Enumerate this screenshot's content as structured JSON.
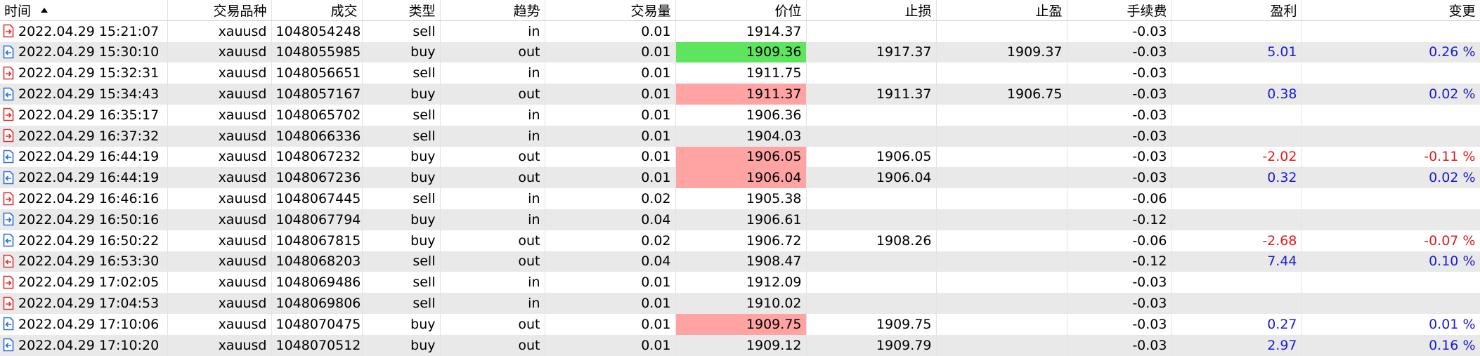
{
  "columns": [
    "时间",
    "交易品种",
    "成交",
    "类型",
    "趋势",
    "交易量",
    "价位",
    "止损",
    "止盈",
    "手续费",
    "盈利",
    "变更"
  ],
  "colors": {
    "pos": "#1a1adb",
    "neg": "#e31b1b",
    "highlight_green": "#5ee55e",
    "highlight_red": "#ffa3a3",
    "row_alt": "#e9e9e9"
  },
  "rows": [
    {
      "icon": "sell-in-icon",
      "time": "2022.04.29 15:21:07",
      "symbol": "xauusd",
      "deal": "1048054248",
      "type": "sell",
      "direction": "in",
      "volume": "0.01",
      "price": "1914.37",
      "price_hl": "",
      "sl": "",
      "tp": "",
      "commission": "-0.03",
      "profit": "",
      "profit_sign": "",
      "change": ""
    },
    {
      "icon": "buy-out-icon",
      "time": "2022.04.29 15:30:10",
      "symbol": "xauusd",
      "deal": "1048055985",
      "type": "buy",
      "direction": "out",
      "volume": "0.01",
      "price": "1909.36",
      "price_hl": "green",
      "sl": "1917.37",
      "tp": "1909.37",
      "commission": "-0.03",
      "profit": "5.01",
      "profit_sign": "pos",
      "change": "0.26 %"
    },
    {
      "icon": "sell-in-icon",
      "time": "2022.04.29 15:32:31",
      "symbol": "xauusd",
      "deal": "1048056651",
      "type": "sell",
      "direction": "in",
      "volume": "0.01",
      "price": "1911.75",
      "price_hl": "",
      "sl": "",
      "tp": "",
      "commission": "-0.03",
      "profit": "",
      "profit_sign": "",
      "change": ""
    },
    {
      "icon": "buy-out-icon",
      "time": "2022.04.29 15:34:43",
      "symbol": "xauusd",
      "deal": "1048057167",
      "type": "buy",
      "direction": "out",
      "volume": "0.01",
      "price": "1911.37",
      "price_hl": "red",
      "sl": "1911.37",
      "tp": "1906.75",
      "commission": "-0.03",
      "profit": "0.38",
      "profit_sign": "pos",
      "change": "0.02 %"
    },
    {
      "icon": "sell-in-icon",
      "time": "2022.04.29 16:35:17",
      "symbol": "xauusd",
      "deal": "1048065702",
      "type": "sell",
      "direction": "in",
      "volume": "0.01",
      "price": "1906.36",
      "price_hl": "",
      "sl": "",
      "tp": "",
      "commission": "-0.03",
      "profit": "",
      "profit_sign": "",
      "change": ""
    },
    {
      "icon": "sell-in-icon",
      "time": "2022.04.29 16:37:32",
      "symbol": "xauusd",
      "deal": "1048066336",
      "type": "sell",
      "direction": "in",
      "volume": "0.01",
      "price": "1904.03",
      "price_hl": "",
      "sl": "",
      "tp": "",
      "commission": "-0.03",
      "profit": "",
      "profit_sign": "",
      "change": ""
    },
    {
      "icon": "buy-out-icon",
      "time": "2022.04.29 16:44:19",
      "symbol": "xauusd",
      "deal": "1048067232",
      "type": "buy",
      "direction": "out",
      "volume": "0.01",
      "price": "1906.05",
      "price_hl": "red",
      "sl": "1906.05",
      "tp": "",
      "commission": "-0.03",
      "profit": "-2.02",
      "profit_sign": "neg",
      "change": "-0.11 %"
    },
    {
      "icon": "buy-out-icon",
      "time": "2022.04.29 16:44:19",
      "symbol": "xauusd",
      "deal": "1048067236",
      "type": "buy",
      "direction": "out",
      "volume": "0.01",
      "price": "1906.04",
      "price_hl": "red",
      "sl": "1906.04",
      "tp": "",
      "commission": "-0.03",
      "profit": "0.32",
      "profit_sign": "pos",
      "change": "0.02 %"
    },
    {
      "icon": "sell-in-icon",
      "time": "2022.04.29 16:46:16",
      "symbol": "xauusd",
      "deal": "1048067445",
      "type": "sell",
      "direction": "in",
      "volume": "0.02",
      "price": "1905.38",
      "price_hl": "",
      "sl": "",
      "tp": "",
      "commission": "-0.06",
      "profit": "",
      "profit_sign": "",
      "change": ""
    },
    {
      "icon": "buy-in-icon",
      "time": "2022.04.29 16:50:16",
      "symbol": "xauusd",
      "deal": "1048067794",
      "type": "buy",
      "direction": "in",
      "volume": "0.04",
      "price": "1906.61",
      "price_hl": "",
      "sl": "",
      "tp": "",
      "commission": "-0.12",
      "profit": "",
      "profit_sign": "",
      "change": ""
    },
    {
      "icon": "buy-out-icon",
      "time": "2022.04.29 16:50:22",
      "symbol": "xauusd",
      "deal": "1048067815",
      "type": "buy",
      "direction": "out",
      "volume": "0.02",
      "price": "1906.72",
      "price_hl": "",
      "sl": "1908.26",
      "tp": "",
      "commission": "-0.06",
      "profit": "-2.68",
      "profit_sign": "neg",
      "change": "-0.07 %"
    },
    {
      "icon": "sell-out-icon",
      "time": "2022.04.29 16:53:30",
      "symbol": "xauusd",
      "deal": "1048068203",
      "type": "sell",
      "direction": "out",
      "volume": "0.04",
      "price": "1908.47",
      "price_hl": "",
      "sl": "",
      "tp": "",
      "commission": "-0.12",
      "profit": "7.44",
      "profit_sign": "pos",
      "change": "0.10 %"
    },
    {
      "icon": "sell-in-icon",
      "time": "2022.04.29 17:02:05",
      "symbol": "xauusd",
      "deal": "1048069486",
      "type": "sell",
      "direction": "in",
      "volume": "0.01",
      "price": "1912.09",
      "price_hl": "",
      "sl": "",
      "tp": "",
      "commission": "-0.03",
      "profit": "",
      "profit_sign": "",
      "change": ""
    },
    {
      "icon": "sell-in-icon",
      "time": "2022.04.29 17:04:53",
      "symbol": "xauusd",
      "deal": "1048069806",
      "type": "sell",
      "direction": "in",
      "volume": "0.01",
      "price": "1910.02",
      "price_hl": "",
      "sl": "",
      "tp": "",
      "commission": "-0.03",
      "profit": "",
      "profit_sign": "",
      "change": ""
    },
    {
      "icon": "buy-out-icon",
      "time": "2022.04.29 17:10:06",
      "symbol": "xauusd",
      "deal": "1048070475",
      "type": "buy",
      "direction": "out",
      "volume": "0.01",
      "price": "1909.75",
      "price_hl": "red",
      "sl": "1909.75",
      "tp": "",
      "commission": "-0.03",
      "profit": "0.27",
      "profit_sign": "pos",
      "change": "0.01 %"
    },
    {
      "icon": "buy-out-icon",
      "time": "2022.04.29 17:10:20",
      "symbol": "xauusd",
      "deal": "1048070512",
      "type": "buy",
      "direction": "out",
      "volume": "0.01",
      "price": "1909.12",
      "price_hl": "",
      "sl": "1909.79",
      "tp": "",
      "commission": "-0.03",
      "profit": "2.97",
      "profit_sign": "pos",
      "change": "0.16 %"
    }
  ]
}
